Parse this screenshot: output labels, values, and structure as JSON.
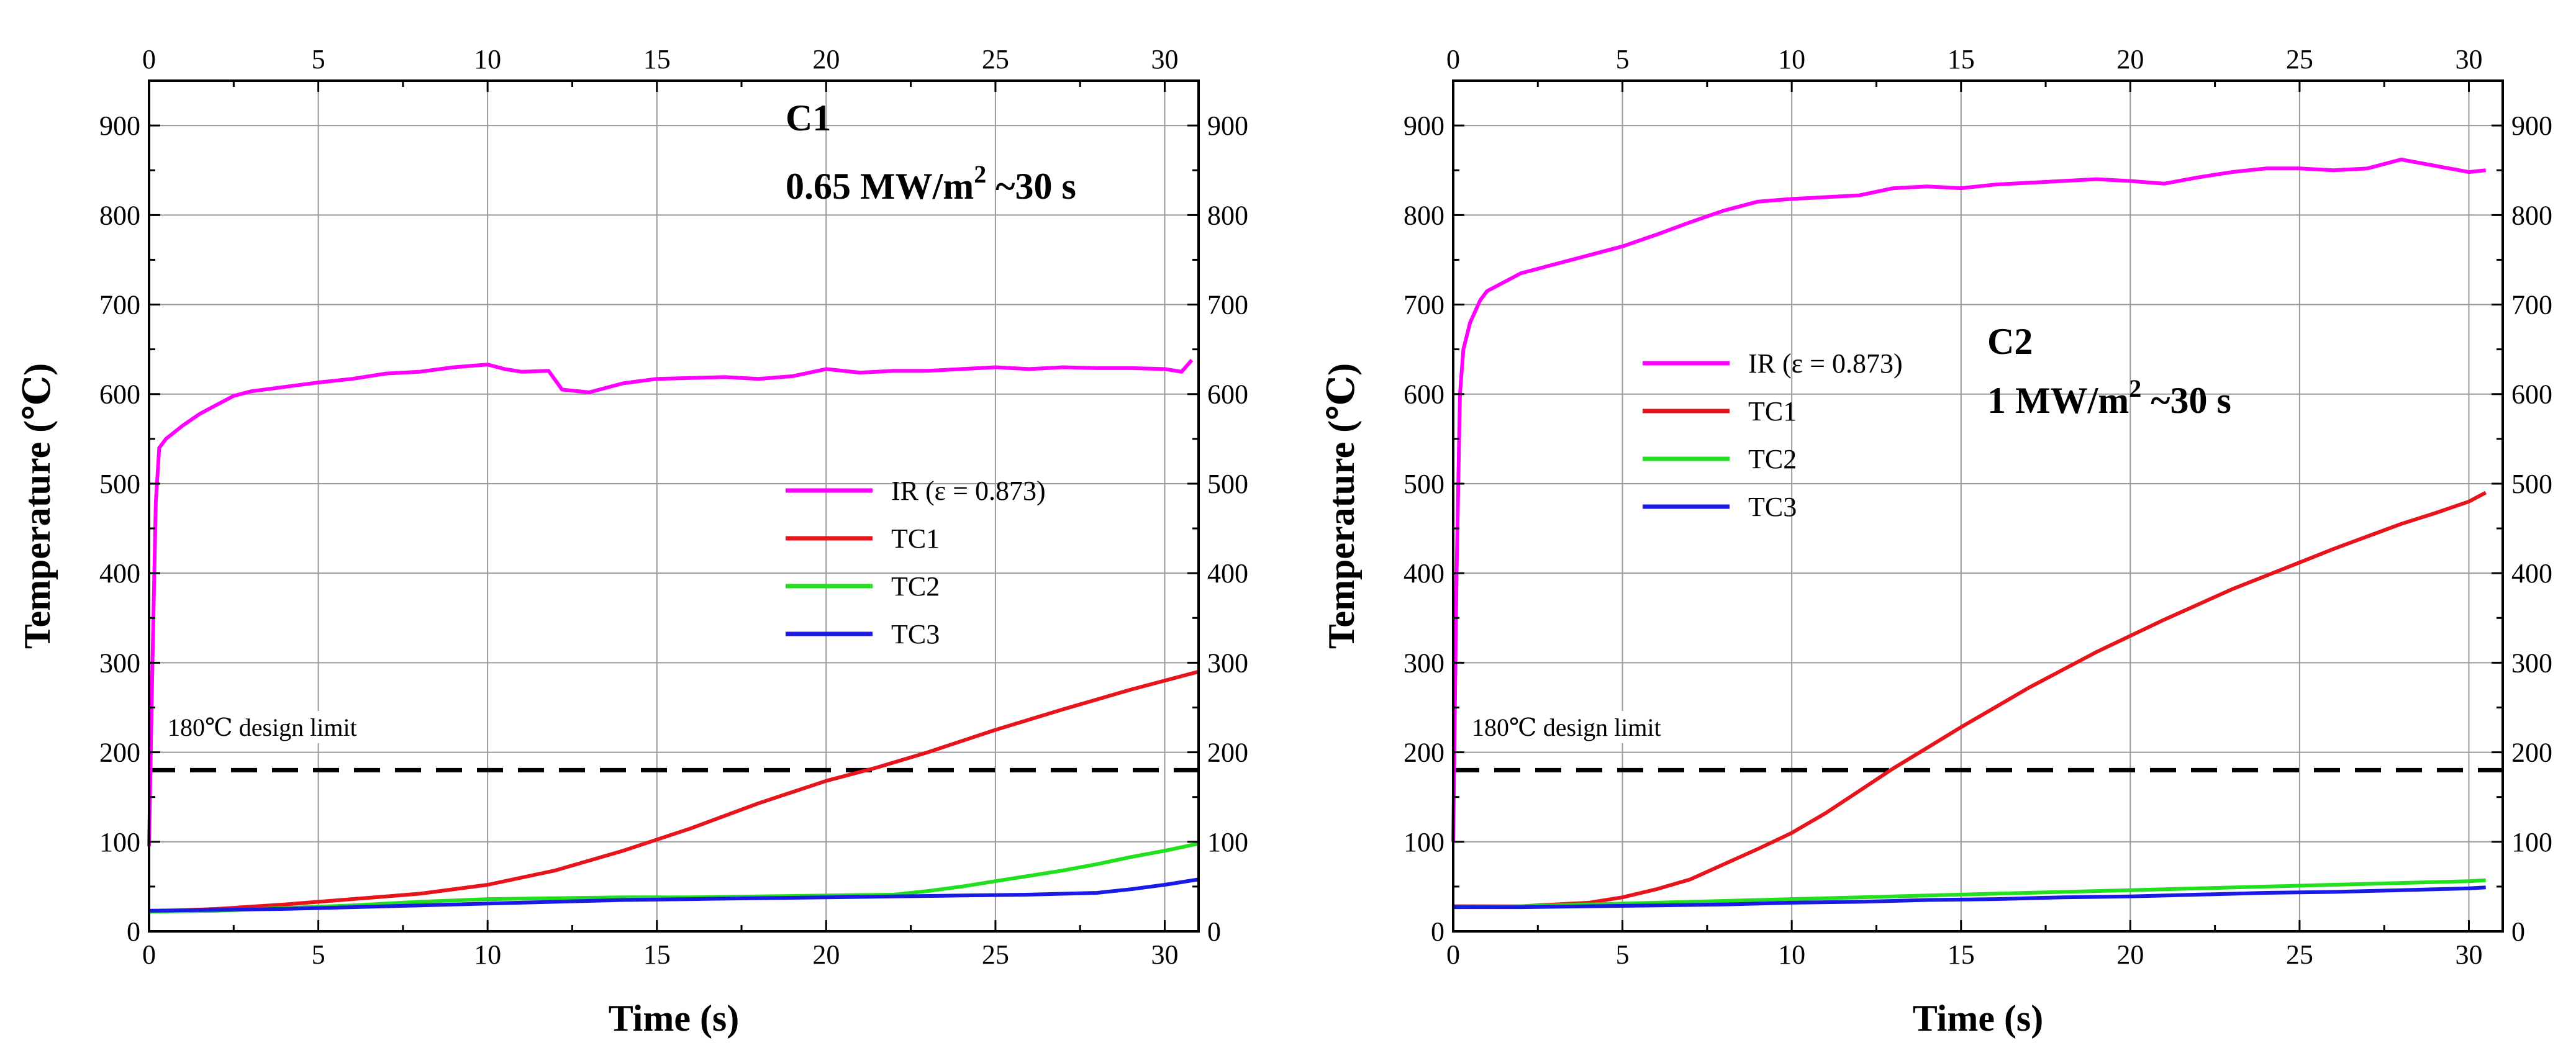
{
  "charts": [
    {
      "id": "C1",
      "type": "line",
      "title": "C1",
      "condition": {
        "base": "0.65 MW/m",
        "sup": "2",
        "tail": " ~30 s"
      },
      "xlabel": "Time (s)",
      "ylabel": "Temperature (℃)",
      "xlim": [
        0,
        31
      ],
      "ylim": [
        0,
        950
      ],
      "xticks": [
        0,
        5,
        10,
        15,
        20,
        25,
        30
      ],
      "yticks": [
        0,
        100,
        200,
        300,
        400,
        500,
        600,
        700,
        800,
        900
      ],
      "design_limit": {
        "value": 180,
        "label": "180℃ design limit"
      },
      "legend_position": "right-middle",
      "series": [
        {
          "name": "IR (ε = 0.873)",
          "color": "#ff00ff",
          "points": [
            [
              0,
              95
            ],
            [
              0.1,
              300
            ],
            [
              0.2,
              480
            ],
            [
              0.3,
              540
            ],
            [
              0.5,
              550
            ],
            [
              1,
              565
            ],
            [
              1.5,
              578
            ],
            [
              2,
              588
            ],
            [
              2.5,
              598
            ],
            [
              3,
              603
            ],
            [
              4,
              608
            ],
            [
              5,
              613
            ],
            [
              6,
              617
            ],
            [
              7,
              623
            ],
            [
              8,
              625
            ],
            [
              9,
              630
            ],
            [
              10,
              633
            ],
            [
              10.5,
              628
            ],
            [
              11,
              625
            ],
            [
              11.8,
              626
            ],
            [
              12.2,
              605
            ],
            [
              13,
              602
            ],
            [
              14,
              612
            ],
            [
              15,
              617
            ],
            [
              16,
              618
            ],
            [
              17,
              619
            ],
            [
              18,
              617
            ],
            [
              19,
              620
            ],
            [
              20,
              628
            ],
            [
              21,
              624
            ],
            [
              22,
              626
            ],
            [
              23,
              626
            ],
            [
              24,
              628
            ],
            [
              25,
              630
            ],
            [
              26,
              628
            ],
            [
              27,
              630
            ],
            [
              28,
              629
            ],
            [
              29,
              629
            ],
            [
              30,
              628
            ],
            [
              30.5,
              625
            ],
            [
              30.8,
              638
            ]
          ]
        },
        {
          "name": "TC1",
          "color": "#e8141c",
          "points": [
            [
              0,
              22
            ],
            [
              2,
              25
            ],
            [
              4,
              30
            ],
            [
              6,
              36
            ],
            [
              8,
              42
            ],
            [
              10,
              52
            ],
            [
              12,
              68
            ],
            [
              14,
              90
            ],
            [
              16,
              115
            ],
            [
              18,
              143
            ],
            [
              20,
              168
            ],
            [
              21.5,
              183
            ],
            [
              23,
              200
            ],
            [
              25,
              225
            ],
            [
              27,
              248
            ],
            [
              29,
              270
            ],
            [
              31,
              290
            ]
          ]
        },
        {
          "name": "TC2",
          "color": "#22e01e",
          "points": [
            [
              0,
              22
            ],
            [
              2,
              23
            ],
            [
              4,
              26
            ],
            [
              6,
              29
            ],
            [
              8,
              33
            ],
            [
              10,
              36
            ],
            [
              12,
              37
            ],
            [
              14,
              38
            ],
            [
              16,
              38
            ],
            [
              18,
              39
            ],
            [
              20,
              40
            ],
            [
              22,
              41
            ],
            [
              23,
              45
            ],
            [
              24,
              50
            ],
            [
              25,
              56
            ],
            [
              26,
              62
            ],
            [
              27,
              68
            ],
            [
              28,
              75
            ],
            [
              29,
              83
            ],
            [
              30,
              90
            ],
            [
              31,
              98
            ]
          ]
        },
        {
          "name": "TC3",
          "color": "#1a1ae8",
          "points": [
            [
              0,
              23
            ],
            [
              2,
              24
            ],
            [
              4,
              25
            ],
            [
              6,
              27
            ],
            [
              8,
              29
            ],
            [
              10,
              31
            ],
            [
              12,
              33
            ],
            [
              14,
              35
            ],
            [
              16,
              36
            ],
            [
              18,
              37
            ],
            [
              20,
              38
            ],
            [
              22,
              39
            ],
            [
              24,
              40
            ],
            [
              26,
              41
            ],
            [
              28,
              43
            ],
            [
              29,
              47
            ],
            [
              30,
              52
            ],
            [
              31,
              58
            ]
          ]
        }
      ]
    },
    {
      "id": "C2",
      "type": "line",
      "title": "C2",
      "condition": {
        "base": "1 MW/m",
        "sup": "2",
        "tail": " ~30 s"
      },
      "xlabel": "Time (s)",
      "ylabel": "Temperature (℃)",
      "xlim": [
        0,
        31
      ],
      "ylim": [
        0,
        950
      ],
      "xticks": [
        0,
        5,
        10,
        15,
        20,
        25,
        30
      ],
      "yticks": [
        0,
        100,
        200,
        300,
        400,
        500,
        600,
        700,
        800,
        900
      ],
      "design_limit": {
        "value": 180,
        "label": "180℃ design limit"
      },
      "legend_position": "center-left",
      "series": [
        {
          "name": "IR (ε = 0.873)",
          "color": "#ff00ff",
          "points": [
            [
              0,
              100
            ],
            [
              0.1,
              400
            ],
            [
              0.2,
              600
            ],
            [
              0.3,
              650
            ],
            [
              0.5,
              680
            ],
            [
              0.8,
              705
            ],
            [
              1,
              715
            ],
            [
              1.5,
              725
            ],
            [
              2,
              735
            ],
            [
              3,
              745
            ],
            [
              4,
              755
            ],
            [
              5,
              765
            ],
            [
              6,
              778
            ],
            [
              7,
              792
            ],
            [
              8,
              805
            ],
            [
              9,
              815
            ],
            [
              10,
              818
            ],
            [
              11,
              820
            ],
            [
              12,
              822
            ],
            [
              13,
              830
            ],
            [
              14,
              832
            ],
            [
              15,
              830
            ],
            [
              16,
              834
            ],
            [
              17,
              836
            ],
            [
              18,
              838
            ],
            [
              19,
              840
            ],
            [
              20,
              838
            ],
            [
              21,
              835
            ],
            [
              22,
              842
            ],
            [
              23,
              848
            ],
            [
              24,
              852
            ],
            [
              25,
              852
            ],
            [
              26,
              850
            ],
            [
              27,
              852
            ],
            [
              28,
              862
            ],
            [
              29,
              855
            ],
            [
              30,
              848
            ],
            [
              30.5,
              850
            ]
          ]
        },
        {
          "name": "TC1",
          "color": "#e8141c",
          "points": [
            [
              0,
              28
            ],
            [
              2,
              28
            ],
            [
              4,
              32
            ],
            [
              5,
              38
            ],
            [
              6,
              47
            ],
            [
              7,
              58
            ],
            [
              8,
              75
            ],
            [
              9,
              92
            ],
            [
              10,
              110
            ],
            [
              11,
              132
            ],
            [
              12,
              157
            ],
            [
              13,
              182
            ],
            [
              14,
              205
            ],
            [
              15,
              228
            ],
            [
              16,
              250
            ],
            [
              17,
              272
            ],
            [
              18,
              292
            ],
            [
              19,
              312
            ],
            [
              20,
              330
            ],
            [
              21,
              348
            ],
            [
              22,
              365
            ],
            [
              23,
              382
            ],
            [
              24,
              397
            ],
            [
              25,
              412
            ],
            [
              26,
              427
            ],
            [
              27,
              441
            ],
            [
              28,
              455
            ],
            [
              29,
              467
            ],
            [
              30,
              480
            ],
            [
              30.5,
              490
            ]
          ]
        },
        {
          "name": "TC2",
          "color": "#22e01e",
          "points": [
            [
              0,
              27
            ],
            [
              2,
              28
            ],
            [
              4,
              30
            ],
            [
              6,
              32
            ],
            [
              8,
              34
            ],
            [
              10,
              36
            ],
            [
              12,
              38
            ],
            [
              14,
              40
            ],
            [
              16,
              42
            ],
            [
              18,
              44
            ],
            [
              20,
              46
            ],
            [
              22,
              48
            ],
            [
              24,
              50
            ],
            [
              26,
              52
            ],
            [
              28,
              54
            ],
            [
              30,
              56
            ],
            [
              30.5,
              57
            ]
          ]
        },
        {
          "name": "TC3",
          "color": "#1a1ae8",
          "points": [
            [
              0,
              27
            ],
            [
              2,
              27
            ],
            [
              4,
              28
            ],
            [
              6,
              29
            ],
            [
              8,
              30
            ],
            [
              10,
              32
            ],
            [
              12,
              33
            ],
            [
              14,
              35
            ],
            [
              16,
              36
            ],
            [
              18,
              38
            ],
            [
              20,
              39
            ],
            [
              22,
              41
            ],
            [
              24,
              43
            ],
            [
              26,
              44
            ],
            [
              28,
              46
            ],
            [
              30,
              48
            ],
            [
              30.5,
              49
            ]
          ]
        }
      ]
    }
  ]
}
